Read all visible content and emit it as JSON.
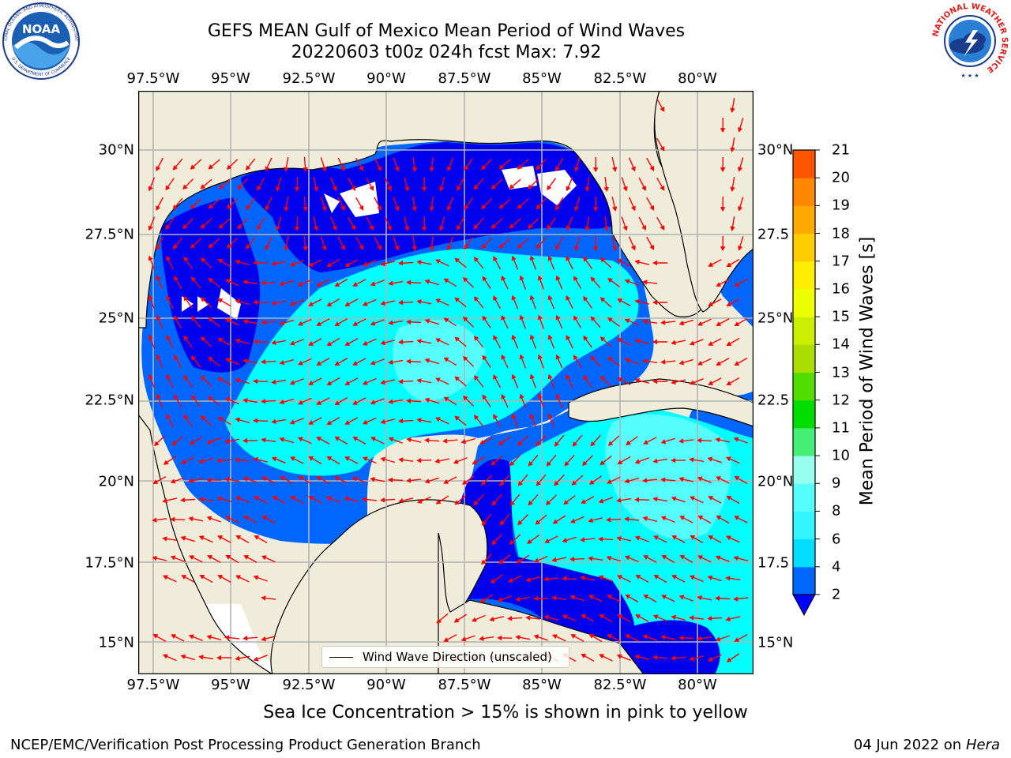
{
  "title": {
    "line1": "GEFS MEAN Gulf of Mexico Mean Period of Wind Waves",
    "line2": "20220603 t00z 024h fcst   Max: 7.92"
  },
  "axes": {
    "lon_ticks": [
      "97.5°W",
      "95°W",
      "92.5°W",
      "90°W",
      "87.5°W",
      "85°W",
      "82.5°W",
      "80°W"
    ],
    "lat_ticks_left": [
      "30°N",
      "27.5°N",
      "25°N",
      "22.5°N",
      "20°N",
      "17.5°N",
      "15°N"
    ],
    "lat_ticks_right": [
      "30°N",
      "27.5",
      "25°N",
      "22.5",
      "20°N",
      "17.5",
      "15°N"
    ]
  },
  "colorbar": {
    "title": "Mean Period of Wind Waves [s]",
    "labels": [
      "2",
      "4",
      "6",
      "8",
      "9",
      "10",
      "11",
      "12",
      "13",
      "14",
      "15",
      "16",
      "17",
      "18",
      "19",
      "20",
      "21"
    ],
    "colors": [
      "#0066ff",
      "#00ddff",
      "#33f5ff",
      "#55ffff",
      "#99ffee",
      "#44ee77",
      "#00dd00",
      "#55dd00",
      "#aadd00",
      "#ccee00",
      "#eeff00",
      "#ffee00",
      "#ffcc00",
      "#ffaa00",
      "#ff8800",
      "#ff5500",
      "#ff2200",
      "#ff0000"
    ],
    "under_color": "#0000ff"
  },
  "legend": {
    "label": "Wind Wave Direction (unscaled)"
  },
  "notes": {
    "sea_ice": "Sea Ice Concentration > 15% is shown in pink to yellow"
  },
  "footer": {
    "credit": "NCEP/EMC/Verification Post Processing Product Generation Branch",
    "date": "04 Jun 2022 on",
    "host": "Hera"
  },
  "logos": {
    "left": "NOAA",
    "left_ring_top": "NATIONAL OCEANIC AND ATMOSPHERIC ADMINISTRATION",
    "left_ring_bottom": "U.S. DEPARTMENT OF COMMERCE",
    "right_ring": "NATIONAL WEATHER SERVICE"
  },
  "colors": {
    "land": "#efedda",
    "wave_dark": "#0000ee",
    "wave_mid": "#0066ff",
    "wave_light": "#00ffff",
    "wave_pale": "#55ffff",
    "arrow": "#ff0000"
  }
}
